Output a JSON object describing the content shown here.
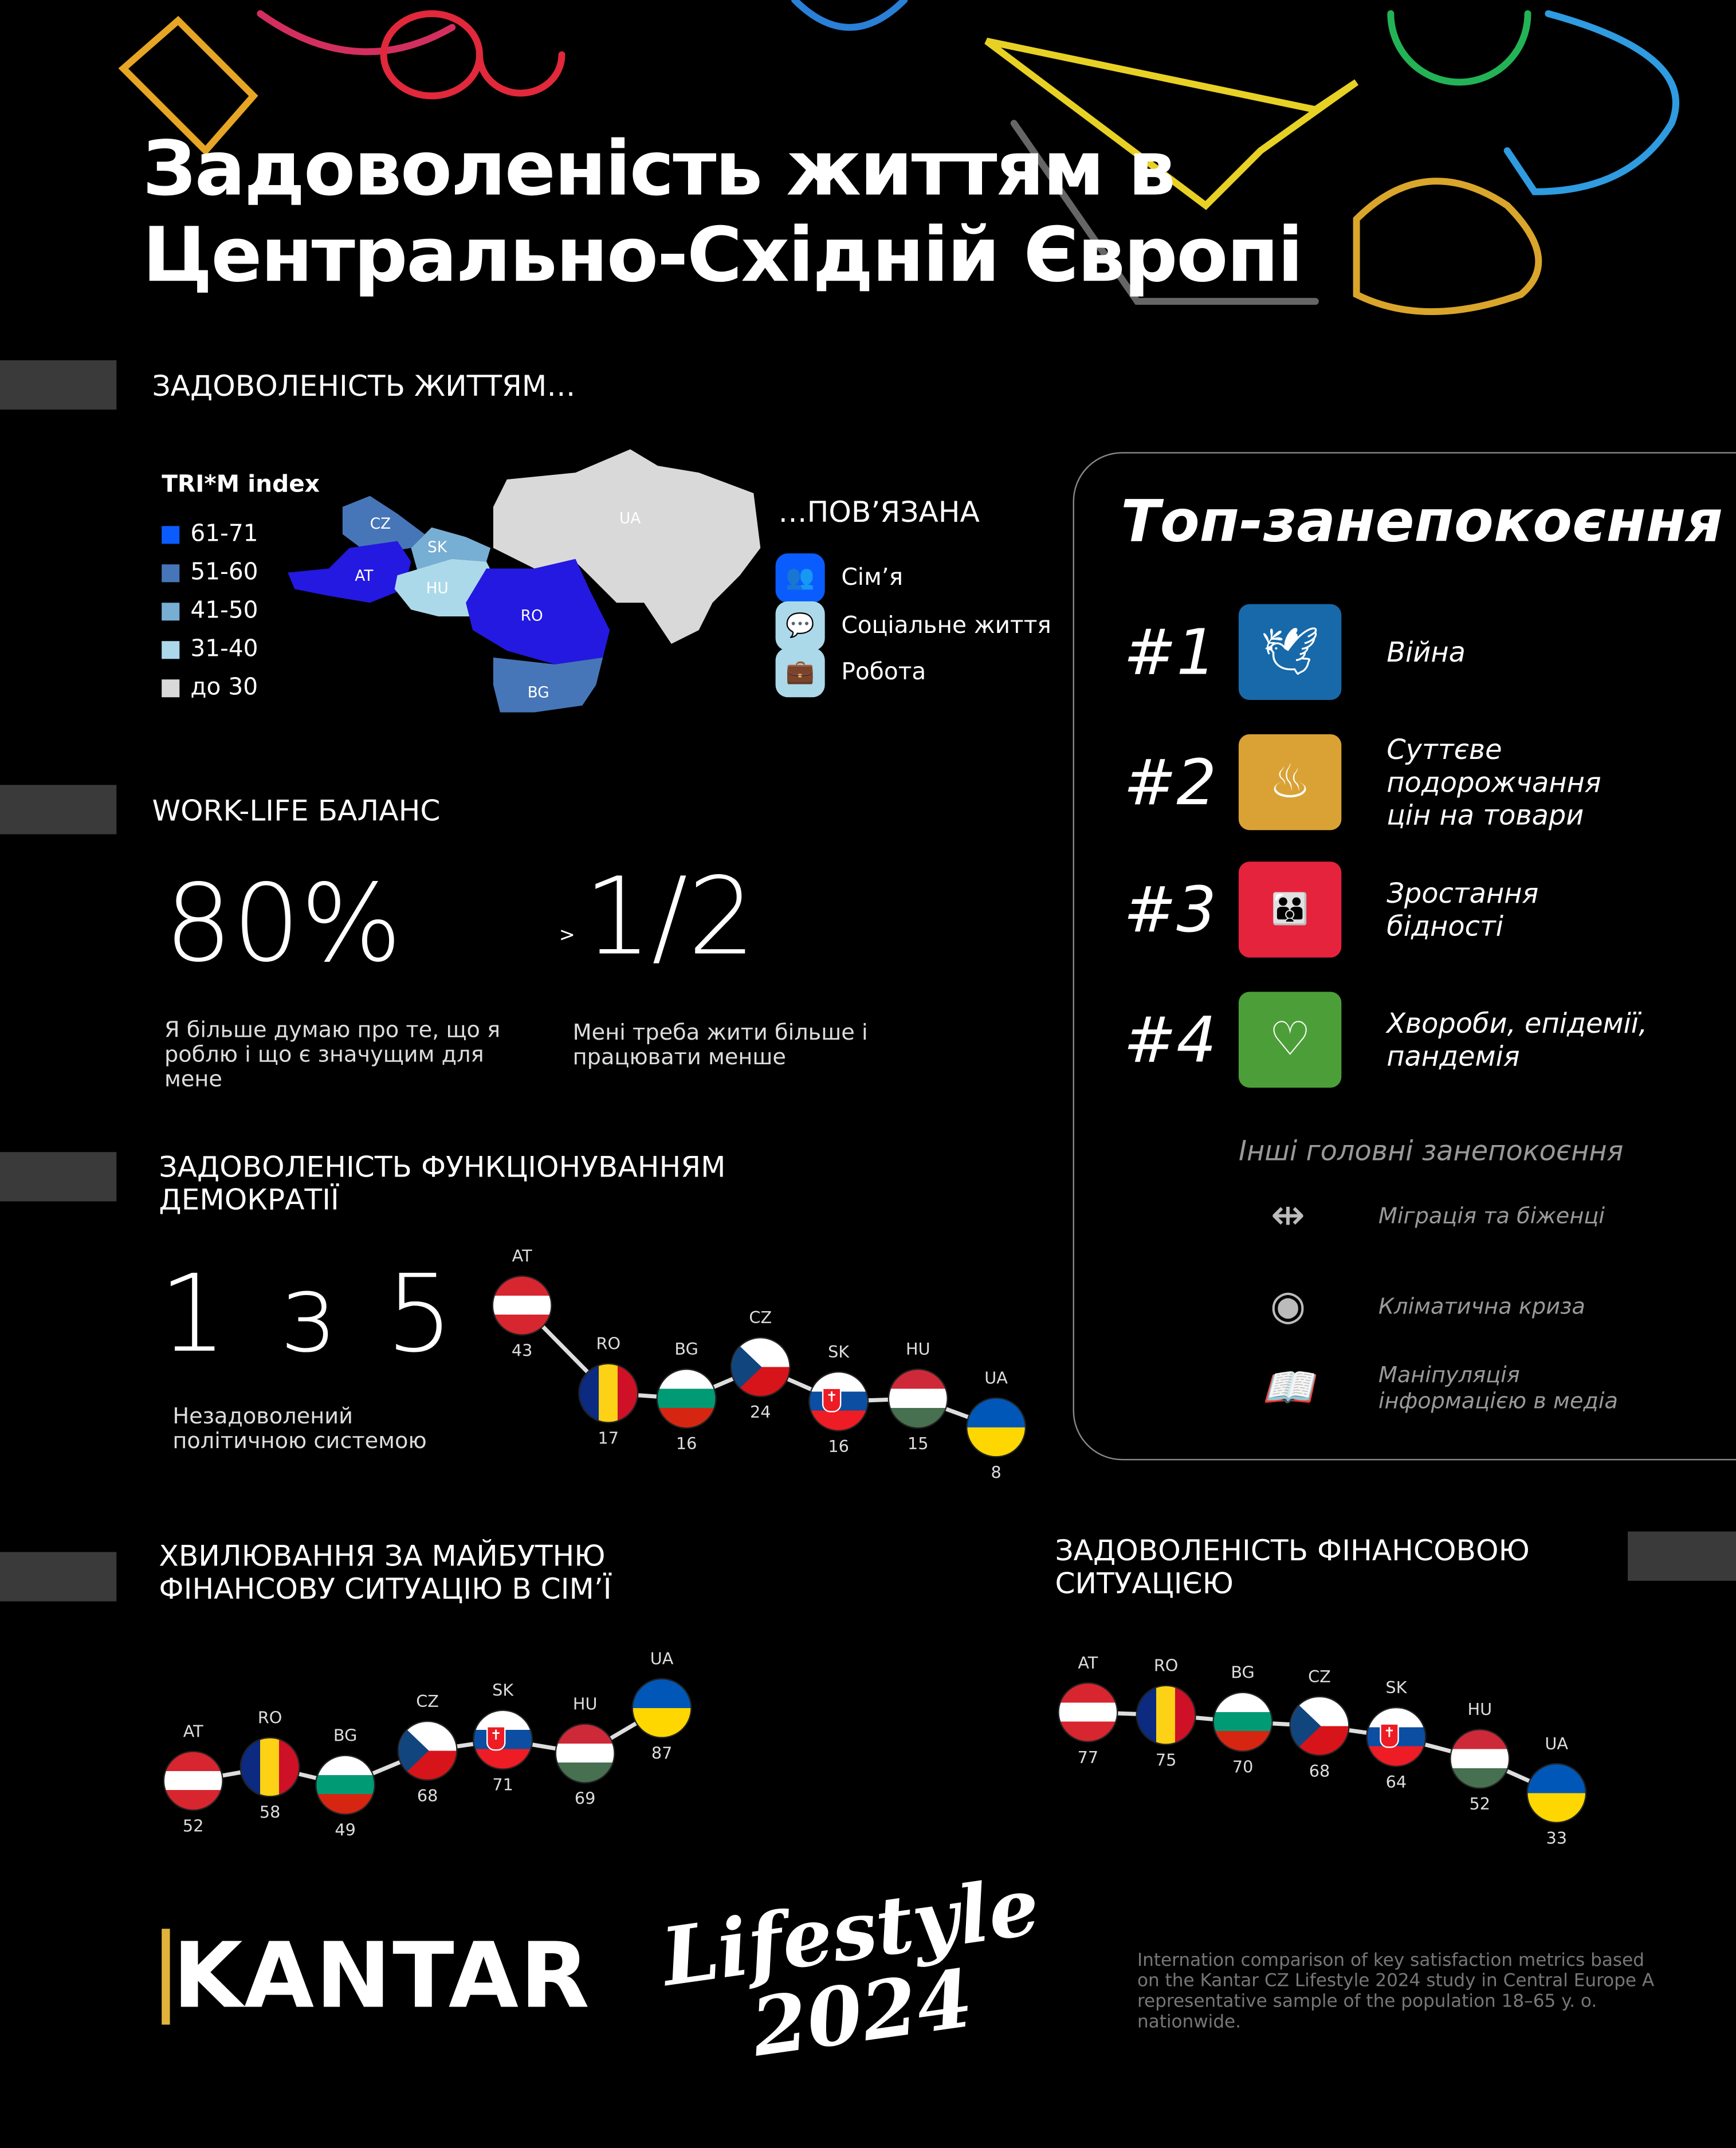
{
  "title": {
    "line1": "Задоволеність життям в",
    "line2": "Центрально-Східній Європі"
  },
  "sections": {
    "life": "ЗАДОВОЛЕНІСТЬ ЖИТТЯМ…",
    "worklife": "WORK-LIFE БАЛАНС",
    "democracy": "ЗАДОВОЛЕНІСТЬ ФУНКЦІОНУВАННЯМ ДЕМОКРАТІЇ",
    "future": "ХВИЛЮВАННЯ ЗА МАЙБУТНЮ ФІНАНСОВУ СИТУАЦІЮ В СІМ’Ї",
    "finance": "ЗАДОВОЛЕНІСТЬ ФІНАНСОВОЮ СИТУАЦІЄЮ"
  },
  "map": {
    "legend_title": "TRI*M index",
    "legend": [
      {
        "label": "61-71",
        "color": "#0a5cff"
      },
      {
        "label": "51-60",
        "color": "#4676b8"
      },
      {
        "label": "41-50",
        "color": "#77aed4"
      },
      {
        "label": "31-40",
        "color": "#acd9ea"
      },
      {
        "label": "до 30",
        "color": "#d9d9d9"
      }
    ],
    "countries": [
      {
        "code": "CZ",
        "color": "#4676b8"
      },
      {
        "code": "SK",
        "color": "#77aed4"
      },
      {
        "code": "AT",
        "color": "#2419e0"
      },
      {
        "code": "HU",
        "color": "#acd9ea"
      },
      {
        "code": "RO",
        "color": "#2419e0"
      },
      {
        "code": "BG",
        "color": "#4676b8"
      },
      {
        "code": "UA",
        "color": "#d9d9d9"
      }
    ]
  },
  "related": {
    "title": "…ПОВ’ЯЗАНА",
    "items": [
      {
        "label": "Сім’я",
        "icon": "family-icon",
        "color": "#0a5cff"
      },
      {
        "label": "Соціальне життя",
        "icon": "social-icon",
        "color": "#acd9ea"
      },
      {
        "label": "Робота",
        "icon": "briefcase-icon",
        "color": "#acd9ea"
      }
    ]
  },
  "worklife": {
    "stat1": {
      "value": "80%",
      "text": "Я більше думаю про те, що я роблю і що є значущим для мене"
    },
    "stat2": {
      "prefix": ">",
      "value": "1/2",
      "text": "Мені треба жити більше і працювати менше"
    }
  },
  "democracy": {
    "value": "1 з 5",
    "text": "Незадоволений політичною системою"
  },
  "concerns": {
    "title": "Топ-занепокоєння",
    "top": [
      {
        "rank": "#1",
        "label": "Війна",
        "icon": "dove-icon",
        "color": "#1769a9"
      },
      {
        "rank": "#2",
        "label": "Суттєве подорожчання цін на товари",
        "icon": "bowl-icon",
        "color": "#daa235"
      },
      {
        "rank": "#3",
        "label": "Зростання бідності",
        "icon": "people-icon",
        "color": "#e5233d"
      },
      {
        "rank": "#4",
        "label": "Хвороби, епідемії, пандемія",
        "icon": "heartbeat-icon",
        "color": "#4c9f38"
      }
    ],
    "other_title": "Інші головні занепокоєння",
    "other": [
      {
        "label": "Міграція та біженці",
        "icon": "migration-icon"
      },
      {
        "label": "Кліматична криза",
        "icon": "eye-globe-icon"
      },
      {
        "label": "Маніпуляція інформацією в медіа",
        "icon": "book-icon"
      }
    ]
  },
  "chart_data": [
    {
      "type": "line",
      "title": "ЗАДОВОЛЕНІСТЬ ФУНКЦІОНУВАННЯМ ДЕМОКРАТІЇ",
      "categories": [
        "AT",
        "RO",
        "BG",
        "CZ",
        "SK",
        "HU",
        "UA"
      ],
      "values": [
        43,
        17,
        16,
        24,
        16,
        15,
        8
      ]
    },
    {
      "type": "line",
      "title": "ХВИЛЮВАННЯ ЗА МАЙБУТНЮ ФІНАНСОВУ СИТУАЦІЮ В СІМ’Ї",
      "categories": [
        "AT",
        "RO",
        "BG",
        "CZ",
        "SK",
        "HU",
        "UA"
      ],
      "values": [
        52,
        58,
        49,
        68,
        71,
        69,
        87
      ]
    },
    {
      "type": "line",
      "title": "ЗАДОВОЛЕНІСТЬ ФІНАНСОВОЮ СИТУАЦІЄЮ",
      "categories": [
        "AT",
        "RO",
        "BG",
        "CZ",
        "SK",
        "HU",
        "UA"
      ],
      "values": [
        77,
        75,
        70,
        68,
        64,
        52,
        33
      ]
    }
  ],
  "footer": {
    "brand": "KANTAR",
    "logo": "Lifestyle 2024",
    "note": "Internation comparison of key satisfaction metrics based on the Kantar CZ Lifestyle 2024 study in Central Europe A representative sample of the population 18–65 y. o. nationwide."
  }
}
